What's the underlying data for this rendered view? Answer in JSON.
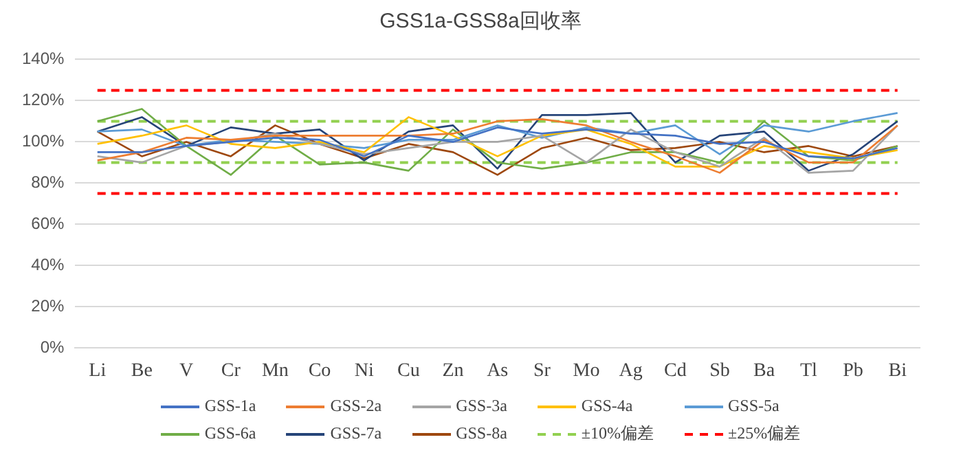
{
  "chart_data": {
    "type": "line",
    "title": "GSS1a-GSS8a回收率",
    "categories": [
      "Li",
      "Be",
      "V",
      "Cr",
      "Mn",
      "Co",
      "Ni",
      "Cu",
      "Zn",
      "As",
      "Sr",
      "Mo",
      "Ag",
      "Cd",
      "Sb",
      "Ba",
      "Tl",
      "Pb",
      "Bi"
    ],
    "series": [
      {
        "name": "GSS-1a",
        "color": "#4472c4",
        "values": [
          95,
          95,
          98,
          100,
          102,
          101,
          93,
          103,
          100,
          107,
          104,
          106,
          104,
          103,
          99,
          100,
          93,
          92,
          97
        ]
      },
      {
        "name": "GSS-2a",
        "color": "#ed7d31",
        "values": [
          91,
          95,
          102,
          101,
          103,
          103,
          103,
          103,
          104,
          110,
          111,
          108,
          100,
          93,
          85,
          101,
          90,
          90,
          108
        ]
      },
      {
        "name": "GSS-3a",
        "color": "#a5a5a5",
        "values": [
          93,
          90,
          98,
          100,
          104,
          99,
          94,
          97,
          100,
          100,
          103,
          90,
          106,
          95,
          88,
          102,
          85,
          86,
          108
        ]
      },
      {
        "name": "GSS-4a",
        "color": "#ffc000",
        "values": [
          99,
          103,
          108,
          99,
          97,
          100,
          95,
          112,
          103,
          93,
          103,
          106,
          99,
          88,
          88,
          98,
          95,
          92,
          96
        ]
      },
      {
        "name": "GSS-5a",
        "color": "#5b9bd5",
        "values": [
          105,
          106,
          98,
          101,
          100,
          99,
          97,
          101,
          101,
          108,
          102,
          107,
          104,
          108,
          94,
          108,
          105,
          110,
          114
        ]
      },
      {
        "name": "GSS-6a",
        "color": "#70ad47",
        "values": [
          110,
          116,
          98,
          84,
          103,
          89,
          90,
          86,
          106,
          90,
          87,
          90,
          95,
          95,
          90,
          110,
          93,
          91,
          98
        ]
      },
      {
        "name": "GSS-7a",
        "color": "#264478",
        "values": [
          105,
          112,
          98,
          107,
          104,
          106,
          91,
          105,
          108,
          87,
          113,
          113,
          114,
          90,
          103,
          105,
          86,
          94,
          110
        ]
      },
      {
        "name": "GSS-8a",
        "color": "#9e480e",
        "values": [
          105,
          93,
          100,
          93,
          108,
          99,
          92,
          99,
          95,
          84,
          97,
          102,
          96,
          97,
          100,
          95,
          98,
          93,
          98
        ]
      },
      {
        "name": "±10%偏差",
        "color": "#92d050",
        "line_style": "dashed",
        "values": [
          110,
          110,
          110,
          110,
          110,
          110,
          110,
          110,
          110,
          110,
          110,
          110,
          110,
          110,
          110,
          110,
          110,
          110,
          110
        ]
      },
      {
        "color": "#92d050",
        "line_style": "dashed",
        "values": [
          90,
          90,
          90,
          90,
          90,
          90,
          90,
          90,
          90,
          90,
          90,
          90,
          90,
          90,
          90,
          90,
          90,
          90,
          90
        ]
      },
      {
        "name": "±25%偏差",
        "color": "#ff0000",
        "line_style": "dashed",
        "values": [
          125,
          125,
          125,
          125,
          125,
          125,
          125,
          125,
          125,
          125,
          125,
          125,
          125,
          125,
          125,
          125,
          125,
          125,
          125
        ]
      },
      {
        "color": "#ff0000",
        "line_style": "dashed",
        "values": [
          75,
          75,
          75,
          75,
          75,
          75,
          75,
          75,
          75,
          75,
          75,
          75,
          75,
          75,
          75,
          75,
          75,
          75,
          75
        ]
      }
    ],
    "ylim": [
      0,
      140
    ],
    "yticks": [
      {
        "value": 0,
        "label": "0%"
      },
      {
        "value": 20,
        "label": "20%"
      },
      {
        "value": 40,
        "label": "40%"
      },
      {
        "value": 60,
        "label": "60%"
      },
      {
        "value": 80,
        "label": "80%"
      },
      {
        "value": 100,
        "label": "100%"
      },
      {
        "value": 120,
        "label": "120%"
      },
      {
        "value": 140,
        "label": "140%"
      }
    ],
    "grid": "y",
    "legend": "bottom",
    "marker": "none",
    "line_style": "solid"
  }
}
